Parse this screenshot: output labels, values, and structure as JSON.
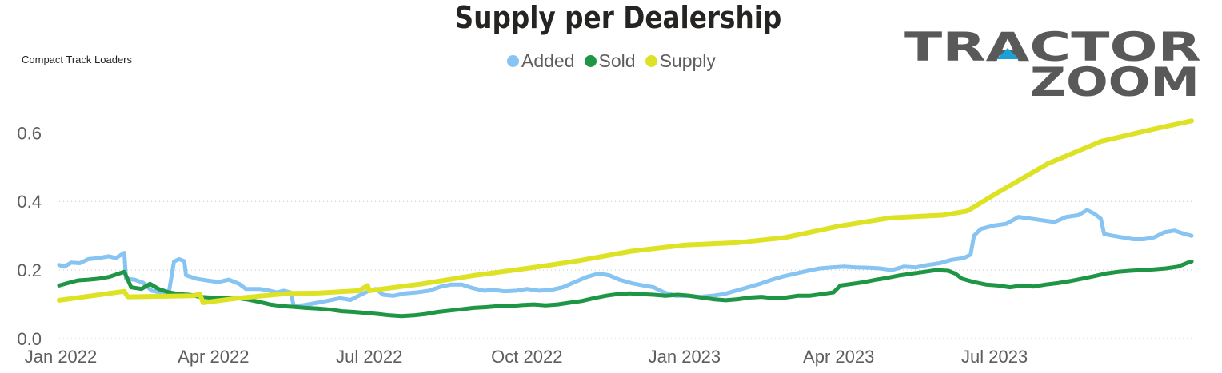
{
  "page": {
    "title": "Supply per Dealership",
    "subtitle": "Compact Track Loaders",
    "logo": {
      "line1": "TRACTOR",
      "line2": "ZOOM",
      "accent_color": "#1ba0d8",
      "text_color": "#595959"
    }
  },
  "legend": [
    {
      "name": "Added",
      "color": "#88c4f2"
    },
    {
      "name": "Sold",
      "color": "#1e9645"
    },
    {
      "name": "Supply",
      "color": "#dde224"
    }
  ],
  "chart_data": {
    "type": "line",
    "title": "Supply per Dealership",
    "subtitle": "Compact Track Loaders",
    "xlabel": "",
    "ylabel": "",
    "x_start": "2022-01-01",
    "x_end": "2023-10-24",
    "x_ticks": [
      "Jan 2022",
      "Apr 2022",
      "Jul 2022",
      "Oct 2022",
      "Jan 2023",
      "Apr 2023",
      "Jul 2023"
    ],
    "y_ticks": [
      "0.0",
      "0.2",
      "0.4",
      "0.6"
    ],
    "ylim": [
      0,
      0.68
    ],
    "grid": "horizontal dotted",
    "legend_position": "top-center",
    "series": [
      {
        "name": "Added",
        "color": "#88c4f2",
        "points": [
          [
            "2022-01-01",
            0.215
          ],
          [
            "2022-01-04",
            0.21
          ],
          [
            "2022-01-08",
            0.222
          ],
          [
            "2022-01-13",
            0.22
          ],
          [
            "2022-01-18",
            0.232
          ],
          [
            "2022-01-24",
            0.235
          ],
          [
            "2022-01-30",
            0.24
          ],
          [
            "2022-02-03",
            0.235
          ],
          [
            "2022-02-08",
            0.25
          ],
          [
            "2022-02-09",
            0.175
          ],
          [
            "2022-02-14",
            0.172
          ],
          [
            "2022-02-19",
            0.163
          ],
          [
            "2022-02-24",
            0.14
          ],
          [
            "2022-03-01",
            0.135
          ],
          [
            "2022-03-06",
            0.135
          ],
          [
            "2022-03-09",
            0.225
          ],
          [
            "2022-03-12",
            0.232
          ],
          [
            "2022-03-15",
            0.226
          ],
          [
            "2022-03-16",
            0.185
          ],
          [
            "2022-03-22",
            0.175
          ],
          [
            "2022-03-28",
            0.17
          ],
          [
            "2022-04-04",
            0.165
          ],
          [
            "2022-04-10",
            0.172
          ],
          [
            "2022-04-16",
            0.16
          ],
          [
            "2022-04-20",
            0.145
          ],
          [
            "2022-04-28",
            0.145
          ],
          [
            "2022-05-04",
            0.14
          ],
          [
            "2022-05-08",
            0.135
          ],
          [
            "2022-05-12",
            0.14
          ],
          [
            "2022-05-16",
            0.135
          ],
          [
            "2022-05-18",
            0.095
          ],
          [
            "2022-05-24",
            0.098
          ],
          [
            "2022-06-01",
            0.105
          ],
          [
            "2022-06-08",
            0.112
          ],
          [
            "2022-06-14",
            0.118
          ],
          [
            "2022-06-20",
            0.113
          ],
          [
            "2022-06-26",
            0.128
          ],
          [
            "2022-07-01",
            0.14
          ],
          [
            "2022-07-05",
            0.145
          ],
          [
            "2022-07-09",
            0.128
          ],
          [
            "2022-07-15",
            0.125
          ],
          [
            "2022-07-22",
            0.132
          ],
          [
            "2022-07-29",
            0.135
          ],
          [
            "2022-08-05",
            0.14
          ],
          [
            "2022-08-12",
            0.152
          ],
          [
            "2022-08-18",
            0.158
          ],
          [
            "2022-08-24",
            0.158
          ],
          [
            "2022-08-30",
            0.148
          ],
          [
            "2022-09-06",
            0.14
          ],
          [
            "2022-09-12",
            0.142
          ],
          [
            "2022-09-18",
            0.138
          ],
          [
            "2022-09-25",
            0.14
          ],
          [
            "2022-10-01",
            0.145
          ],
          [
            "2022-10-08",
            0.14
          ],
          [
            "2022-10-15",
            0.142
          ],
          [
            "2022-10-22",
            0.15
          ],
          [
            "2022-10-29",
            0.165
          ],
          [
            "2022-11-05",
            0.18
          ],
          [
            "2022-11-12",
            0.19
          ],
          [
            "2022-11-18",
            0.185
          ],
          [
            "2022-11-24",
            0.172
          ],
          [
            "2022-12-01",
            0.162
          ],
          [
            "2022-12-08",
            0.155
          ],
          [
            "2022-12-14",
            0.15
          ],
          [
            "2022-12-20",
            0.135
          ],
          [
            "2022-12-27",
            0.125
          ],
          [
            "2023-01-03",
            0.125
          ],
          [
            "2023-01-10",
            0.122
          ],
          [
            "2023-01-17",
            0.125
          ],
          [
            "2023-01-24",
            0.13
          ],
          [
            "2023-01-31",
            0.14
          ],
          [
            "2023-02-07",
            0.15
          ],
          [
            "2023-02-14",
            0.16
          ],
          [
            "2023-02-21",
            0.172
          ],
          [
            "2023-02-28",
            0.182
          ],
          [
            "2023-03-07",
            0.19
          ],
          [
            "2023-03-14",
            0.198
          ],
          [
            "2023-03-21",
            0.205
          ],
          [
            "2023-03-28",
            0.208
          ],
          [
            "2023-04-04",
            0.21
          ],
          [
            "2023-04-11",
            0.208
          ],
          [
            "2023-04-18",
            0.207
          ],
          [
            "2023-04-25",
            0.205
          ],
          [
            "2023-05-02",
            0.2
          ],
          [
            "2023-05-09",
            0.21
          ],
          [
            "2023-05-16",
            0.208
          ],
          [
            "2023-05-23",
            0.215
          ],
          [
            "2023-05-30",
            0.22
          ],
          [
            "2023-06-06",
            0.23
          ],
          [
            "2023-06-13",
            0.235
          ],
          [
            "2023-06-17",
            0.245
          ],
          [
            "2023-06-19",
            0.3
          ],
          [
            "2023-06-23",
            0.32
          ],
          [
            "2023-07-01",
            0.33
          ],
          [
            "2023-07-08",
            0.335
          ],
          [
            "2023-07-15",
            0.355
          ],
          [
            "2023-07-22",
            0.35
          ],
          [
            "2023-07-29",
            0.345
          ],
          [
            "2023-08-05",
            0.34
          ],
          [
            "2023-08-12",
            0.355
          ],
          [
            "2023-08-19",
            0.36
          ],
          [
            "2023-08-24",
            0.375
          ],
          [
            "2023-08-28",
            0.365
          ],
          [
            "2023-09-01",
            0.35
          ],
          [
            "2023-09-03",
            0.305
          ],
          [
            "2023-09-08",
            0.3
          ],
          [
            "2023-09-14",
            0.295
          ],
          [
            "2023-09-20",
            0.29
          ],
          [
            "2023-09-26",
            0.29
          ],
          [
            "2023-10-02",
            0.295
          ],
          [
            "2023-10-08",
            0.31
          ],
          [
            "2023-10-14",
            0.315
          ],
          [
            "2023-10-20",
            0.305
          ],
          [
            "2023-10-24",
            0.3
          ]
        ]
      },
      {
        "name": "Sold",
        "color": "#1e9645",
        "points": [
          [
            "2022-01-01",
            0.155
          ],
          [
            "2022-01-06",
            0.162
          ],
          [
            "2022-01-12",
            0.17
          ],
          [
            "2022-01-18",
            0.172
          ],
          [
            "2022-01-24",
            0.175
          ],
          [
            "2022-01-30",
            0.18
          ],
          [
            "2022-02-05",
            0.19
          ],
          [
            "2022-02-08",
            0.195
          ],
          [
            "2022-02-12",
            0.15
          ],
          [
            "2022-02-18",
            0.145
          ],
          [
            "2022-02-23",
            0.16
          ],
          [
            "2022-02-28",
            0.145
          ],
          [
            "2022-03-06",
            0.135
          ],
          [
            "2022-03-12",
            0.13
          ],
          [
            "2022-03-18",
            0.128
          ],
          [
            "2022-03-24",
            0.122
          ],
          [
            "2022-03-30",
            0.12
          ],
          [
            "2022-04-06",
            0.118
          ],
          [
            "2022-04-13",
            0.12
          ],
          [
            "2022-04-20",
            0.115
          ],
          [
            "2022-04-27",
            0.108
          ],
          [
            "2022-05-04",
            0.1
          ],
          [
            "2022-05-11",
            0.095
          ],
          [
            "2022-05-18",
            0.093
          ],
          [
            "2022-05-25",
            0.09
          ],
          [
            "2022-06-01",
            0.088
          ],
          [
            "2022-06-08",
            0.085
          ],
          [
            "2022-06-15",
            0.08
          ],
          [
            "2022-06-22",
            0.078
          ],
          [
            "2022-06-29",
            0.075
          ],
          [
            "2022-07-06",
            0.072
          ],
          [
            "2022-07-13",
            0.068
          ],
          [
            "2022-07-20",
            0.066
          ],
          [
            "2022-07-27",
            0.068
          ],
          [
            "2022-08-03",
            0.072
          ],
          [
            "2022-08-10",
            0.078
          ],
          [
            "2022-08-17",
            0.082
          ],
          [
            "2022-08-24",
            0.086
          ],
          [
            "2022-08-31",
            0.09
          ],
          [
            "2022-09-07",
            0.092
          ],
          [
            "2022-09-14",
            0.095
          ],
          [
            "2022-09-21",
            0.095
          ],
          [
            "2022-09-28",
            0.098
          ],
          [
            "2022-10-05",
            0.1
          ],
          [
            "2022-10-12",
            0.097
          ],
          [
            "2022-10-19",
            0.1
          ],
          [
            "2022-10-26",
            0.105
          ],
          [
            "2022-11-02",
            0.11
          ],
          [
            "2022-11-09",
            0.118
          ],
          [
            "2022-11-16",
            0.125
          ],
          [
            "2022-11-23",
            0.13
          ],
          [
            "2022-11-30",
            0.132
          ],
          [
            "2022-12-07",
            0.13
          ],
          [
            "2022-12-14",
            0.128
          ],
          [
            "2022-12-21",
            0.125
          ],
          [
            "2022-12-28",
            0.128
          ],
          [
            "2023-01-04",
            0.125
          ],
          [
            "2023-01-11",
            0.12
          ],
          [
            "2023-01-18",
            0.115
          ],
          [
            "2023-01-25",
            0.112
          ],
          [
            "2023-02-01",
            0.115
          ],
          [
            "2023-02-08",
            0.12
          ],
          [
            "2023-02-15",
            0.122
          ],
          [
            "2023-02-22",
            0.118
          ],
          [
            "2023-03-01",
            0.12
          ],
          [
            "2023-03-08",
            0.125
          ],
          [
            "2023-03-15",
            0.125
          ],
          [
            "2023-03-22",
            0.13
          ],
          [
            "2023-03-29",
            0.135
          ],
          [
            "2023-04-02",
            0.155
          ],
          [
            "2023-04-09",
            0.16
          ],
          [
            "2023-04-16",
            0.165
          ],
          [
            "2023-04-23",
            0.172
          ],
          [
            "2023-04-30",
            0.178
          ],
          [
            "2023-05-07",
            0.185
          ],
          [
            "2023-05-14",
            0.19
          ],
          [
            "2023-05-21",
            0.195
          ],
          [
            "2023-05-28",
            0.2
          ],
          [
            "2023-06-04",
            0.198
          ],
          [
            "2023-06-08",
            0.19
          ],
          [
            "2023-06-12",
            0.175
          ],
          [
            "2023-06-19",
            0.165
          ],
          [
            "2023-06-26",
            0.158
          ],
          [
            "2023-07-03",
            0.155
          ],
          [
            "2023-07-10",
            0.15
          ],
          [
            "2023-07-17",
            0.155
          ],
          [
            "2023-07-24",
            0.152
          ],
          [
            "2023-07-31",
            0.158
          ],
          [
            "2023-08-07",
            0.162
          ],
          [
            "2023-08-14",
            0.168
          ],
          [
            "2023-08-21",
            0.175
          ],
          [
            "2023-08-28",
            0.182
          ],
          [
            "2023-09-04",
            0.19
          ],
          [
            "2023-09-11",
            0.195
          ],
          [
            "2023-09-18",
            0.198
          ],
          [
            "2023-09-25",
            0.2
          ],
          [
            "2023-10-02",
            0.202
          ],
          [
            "2023-10-09",
            0.205
          ],
          [
            "2023-10-16",
            0.21
          ],
          [
            "2023-10-22",
            0.222
          ],
          [
            "2023-10-24",
            0.225
          ]
        ]
      },
      {
        "name": "Supply",
        "color": "#dde224",
        "points": [
          [
            "2022-01-01",
            0.112
          ],
          [
            "2022-02-08",
            0.138
          ],
          [
            "2022-02-10",
            0.122
          ],
          [
            "2022-03-20",
            0.125
          ],
          [
            "2022-03-24",
            0.13
          ],
          [
            "2022-03-26",
            0.105
          ],
          [
            "2022-04-15",
            0.118
          ],
          [
            "2022-05-15",
            0.132
          ],
          [
            "2022-06-01",
            0.133
          ],
          [
            "2022-06-25",
            0.14
          ],
          [
            "2022-06-30",
            0.155
          ],
          [
            "2022-07-01",
            0.14
          ],
          [
            "2022-08-01",
            0.16
          ],
          [
            "2022-09-01",
            0.185
          ],
          [
            "2022-10-01",
            0.205
          ],
          [
            "2022-10-15",
            0.215
          ],
          [
            "2022-11-01",
            0.228
          ],
          [
            "2022-12-01",
            0.255
          ],
          [
            "2023-01-01",
            0.273
          ],
          [
            "2023-02-01",
            0.28
          ],
          [
            "2023-03-01",
            0.295
          ],
          [
            "2023-04-01",
            0.328
          ],
          [
            "2023-05-01",
            0.352
          ],
          [
            "2023-06-01",
            0.36
          ],
          [
            "2023-06-15",
            0.372
          ],
          [
            "2023-07-01",
            0.42
          ],
          [
            "2023-08-01",
            0.51
          ],
          [
            "2023-09-01",
            0.575
          ],
          [
            "2023-10-01",
            0.61
          ],
          [
            "2023-10-24",
            0.635
          ]
        ]
      }
    ]
  }
}
